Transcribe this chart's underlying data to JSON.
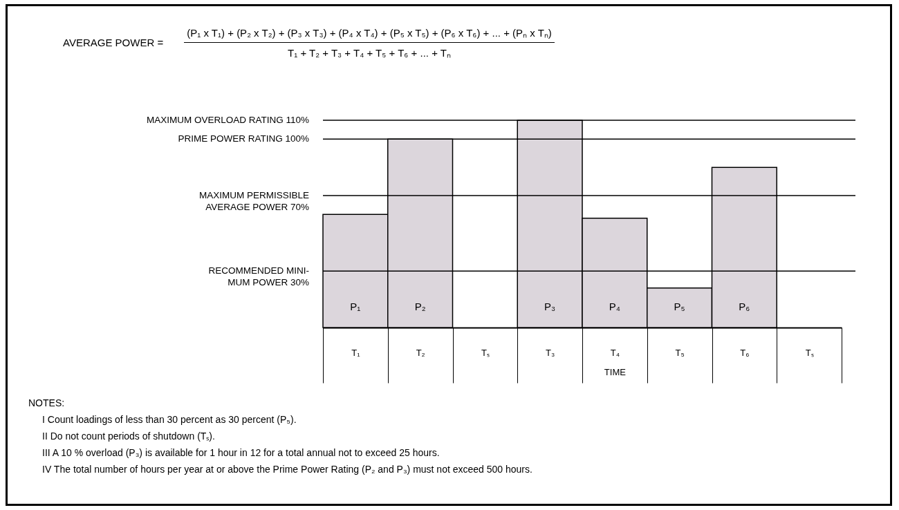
{
  "chart_data": {
    "type": "bar",
    "categories": [
      "T₁",
      "T₂",
      "Tₛ",
      "T₃",
      "T₄",
      "T₅",
      "T₆",
      "Tₛ"
    ],
    "values": [
      60,
      100,
      null,
      110,
      58,
      21,
      85,
      null
    ],
    "color": "#dcd6dc",
    "xlabel": "TIME",
    "ylim": [
      0,
      110
    ],
    "ref_lines": [
      {
        "axis": "y",
        "value": 30,
        "label": "RECOMMENDED MINI-\nMUM POWER 30%"
      },
      {
        "axis": "y",
        "value": 70,
        "label": "MAXIMUM PERMISSIBLE\nAVERAGE POWER 70%"
      },
      {
        "axis": "y",
        "value": 100,
        "label": "PRIME POWER RATING 100%"
      },
      {
        "axis": "y",
        "value": 110,
        "label": "MAXIMUM OVERLOAD RATING 110%"
      }
    ],
    "value_labels": [
      "P₁",
      "P₂",
      null,
      "P₃",
      "P₄",
      "P₅",
      "P₆",
      null
    ],
    "annotations": [
      "AVERAGE POWER =",
      "(P₁ x T₁) + (P₂ x T₂) + (P₃ x T₃) + (P₄ x T₄) + (P₅ x T₅) + (P₆ x T₆) + ... + (Pₙ x Tₙ)",
      "T₁ + T₂ + T₃ + T₄ + T₅ + T₆ + ... + Tₙ",
      "NOTES:",
      "I  Count loadings of less than 30 percent as 30 percent (P₅).",
      "II  Do not count periods of shutdown (Tₛ).",
      "III  A 10 % overload (P₃) is available for 1 hour in 12 for a total annual not to exceed 25 hours.",
      "IV  The total number of hours per year at or above the Prime Power Rating (P₂ and P₃) must not exceed 500 hours."
    ]
  }
}
